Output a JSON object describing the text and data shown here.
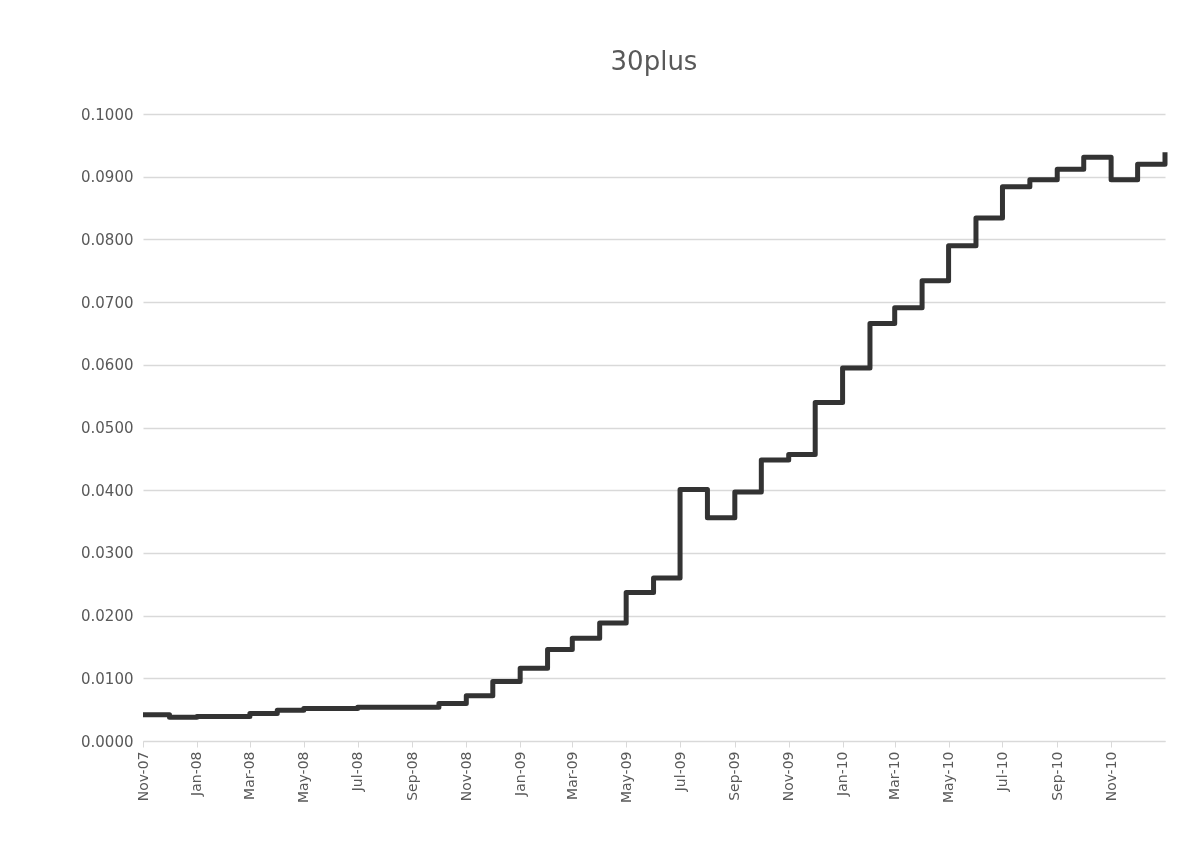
{
  "chart_data": {
    "type": "step",
    "title": "30plus",
    "x": [
      "2007-11",
      "2007-12",
      "2008-01",
      "2008-02",
      "2008-03",
      "2008-04",
      "2008-05",
      "2008-06",
      "2008-07",
      "2008-08",
      "2008-09",
      "2008-10",
      "2008-11",
      "2008-12",
      "2009-01",
      "2009-02",
      "2009-03",
      "2009-04",
      "2009-05",
      "2009-06",
      "2009-07",
      "2009-08",
      "2009-09",
      "2009-10",
      "2009-11",
      "2009-12",
      "2010-01",
      "2010-02",
      "2010-03",
      "2010-04",
      "2010-05",
      "2010-06",
      "2010-07",
      "2010-08",
      "2010-09",
      "2010-10",
      "2010-11",
      "2010-12",
      "2011-01"
    ],
    "series": [
      {
        "color": "#333333",
        "values": [
          0.0042,
          0.0038,
          0.0039,
          0.0039,
          0.0044,
          0.0049,
          0.0052,
          0.0052,
          0.0054,
          0.0054,
          0.0054,
          0.006,
          0.0072,
          0.0095,
          0.0116,
          0.0146,
          0.0164,
          0.0188,
          0.0237,
          0.026,
          0.0401,
          0.0356,
          0.0397,
          0.0448,
          0.0457,
          0.054,
          0.0595,
          0.0666,
          0.0691,
          0.0734,
          0.079,
          0.0834,
          0.0884,
          0.0895,
          0.0912,
          0.0931,
          0.0895,
          0.092,
          0.0939
        ]
      }
    ],
    "xlim": [
      "2007-11",
      "2011-01"
    ],
    "xticks": [
      {
        "value": "2007-11",
        "label": "Nov-07"
      },
      {
        "value": "2008-01",
        "label": "Jan-08"
      },
      {
        "value": "2008-03",
        "label": "Mar-08"
      },
      {
        "value": "2008-05",
        "label": "May-08"
      },
      {
        "value": "2008-07",
        "label": "Jul-08"
      },
      {
        "value": "2008-09",
        "label": "Sep-08"
      },
      {
        "value": "2008-11",
        "label": "Nov-08"
      },
      {
        "value": "2009-01",
        "label": "Jan-09"
      },
      {
        "value": "2009-03",
        "label": "Mar-09"
      },
      {
        "value": "2009-05",
        "label": "May-09"
      },
      {
        "value": "2009-07",
        "label": "Jul-09"
      },
      {
        "value": "2009-09",
        "label": "Sep-09"
      },
      {
        "value": "2009-11",
        "label": "Nov-09"
      },
      {
        "value": "2010-01",
        "label": "Jan-10"
      },
      {
        "value": "2010-03",
        "label": "Mar-10"
      },
      {
        "value": "2010-05",
        "label": "May-10"
      },
      {
        "value": "2010-07",
        "label": "Jul-10"
      },
      {
        "value": "2010-09",
        "label": "Sep-10"
      },
      {
        "value": "2010-11",
        "label": "Nov-10"
      }
    ],
    "ylim": [
      0,
      0.1
    ],
    "yticks": [
      {
        "value": 0,
        "label": "0.0000"
      },
      {
        "value": 0.01,
        "label": "0.0100"
      },
      {
        "value": 0.02,
        "label": "0.0200"
      },
      {
        "value": 0.03,
        "label": "0.0300"
      },
      {
        "value": 0.04,
        "label": "0.0400"
      },
      {
        "value": 0.05,
        "label": "0.0500"
      },
      {
        "value": 0.06,
        "label": "0.0600"
      },
      {
        "value": 0.07,
        "label": "0.0700"
      },
      {
        "value": 0.08,
        "label": "0.0800"
      },
      {
        "value": 0.09,
        "label": "0.0900"
      },
      {
        "value": 0.1,
        "label": "0.1000"
      }
    ],
    "grid": "y",
    "marker": "none",
    "line_style": "solid"
  }
}
